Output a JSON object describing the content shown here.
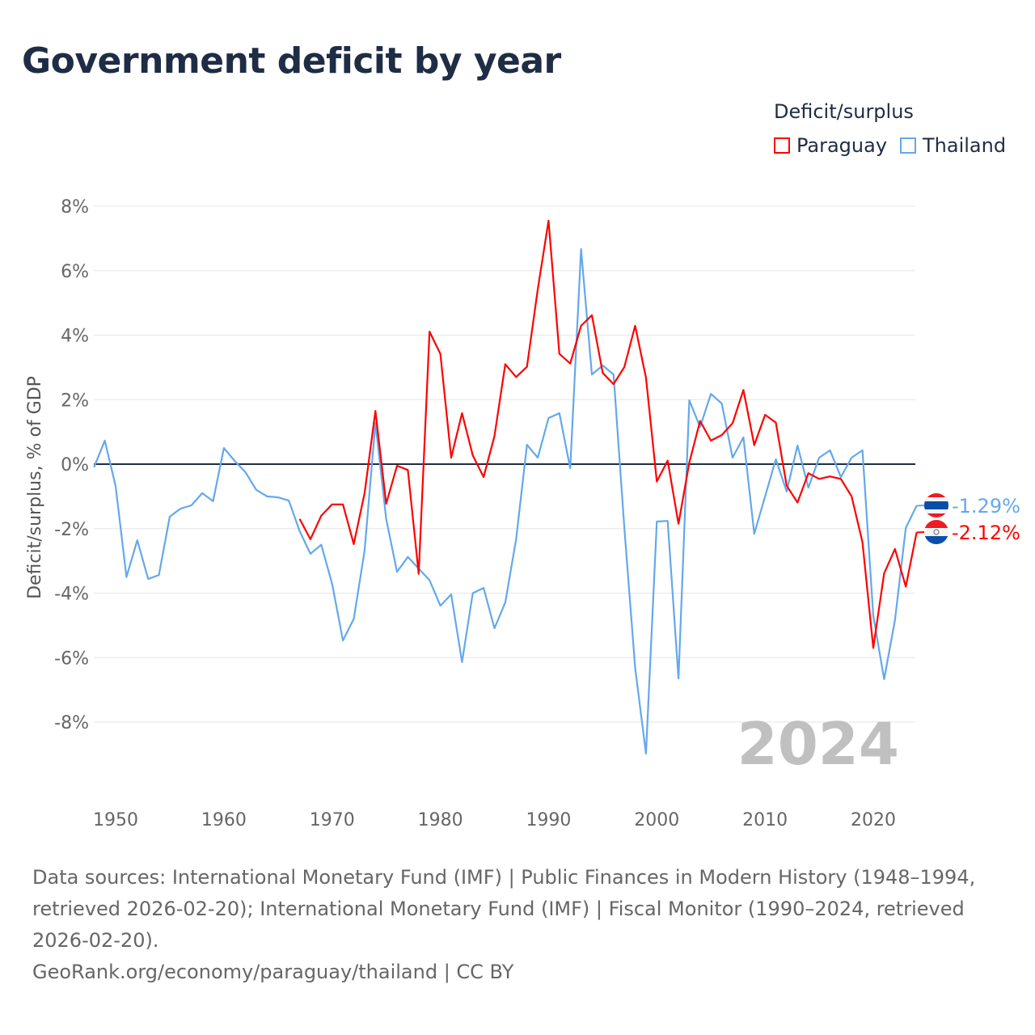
{
  "title": "Government deficit by year",
  "legend": {
    "title": "Deficit/surplus",
    "items": [
      "Paraguay",
      "Thailand"
    ]
  },
  "colors": {
    "Paraguay": "#ff0000",
    "Thailand": "#64a8eb",
    "zero": "#1e2d45",
    "grid": "#e6e6e6",
    "watermark": "#c0c0c0"
  },
  "footer": {
    "sources": "Data sources: International Monetary Fund (IMF) | Public Finances in Modern History (1948–1994, retrieved 2026-02-20); International Monetary Fund (IMF) | Fiscal Monitor (1990–2024, retrieved 2026-02-20).",
    "credit": "GeoRank.org/economy/paraguay/thailand | CC BY"
  },
  "chart_data": {
    "type": "line",
    "title": "Government deficit by year",
    "xlabel": "",
    "ylabel": "Deficit/surplus, % of GDP",
    "xlim": [
      1948,
      2024
    ],
    "ylim": [
      -10,
      8.5
    ],
    "yticks": [
      8,
      6,
      4,
      2,
      0,
      -2,
      -4,
      -6,
      -8
    ],
    "ytick_labels": [
      "8%",
      "6%",
      "4%",
      "2%",
      "0%",
      "-2%",
      "-4%",
      "-6%",
      "-8%"
    ],
    "xticks": [
      1950,
      1960,
      1970,
      1980,
      1990,
      2000,
      2010,
      2020
    ],
    "xtick_labels": [
      "1950",
      "1960",
      "1970",
      "1980",
      "1990",
      "2000",
      "2010",
      "2020"
    ],
    "grid": true,
    "legend_position": "top-right",
    "watermark": "2024",
    "series": [
      {
        "name": "Paraguay",
        "start_year": 1967,
        "values": [
          -1.7,
          -2.33,
          -1.6,
          -1.25,
          -1.25,
          -2.48,
          -0.9,
          1.65,
          -1.23,
          -0.05,
          -0.18,
          -3.4,
          4.11,
          3.42,
          0.2,
          1.58,
          0.27,
          -0.4,
          0.87,
          3.1,
          2.7,
          3.02,
          5.43,
          7.55,
          3.42,
          3.12,
          4.29,
          4.62,
          2.83,
          2.48,
          3.01,
          4.29,
          2.68,
          -0.54,
          0.11,
          -1.85,
          0.05,
          1.34,
          0.73,
          0.9,
          1.27,
          2.3,
          0.59,
          1.53,
          1.29,
          -0.67,
          -1.19,
          -0.28,
          -0.46,
          -0.38,
          -0.46,
          -1.0,
          -2.42,
          -5.7,
          -3.39,
          -2.63,
          -3.8,
          -2.12
        ],
        "end_label": "-2.12%"
      },
      {
        "name": "Thailand",
        "start_year": 1948,
        "values": [
          -0.1,
          0.73,
          -0.68,
          -3.5,
          -2.36,
          -3.56,
          -3.44,
          -1.63,
          -1.38,
          -1.28,
          -0.9,
          -1.15,
          0.5,
          0.1,
          -0.25,
          -0.8,
          -1.0,
          -1.03,
          -1.13,
          -2.08,
          -2.78,
          -2.5,
          -3.71,
          -5.47,
          -4.8,
          -2.68,
          1.28,
          -1.7,
          -3.34,
          -2.88,
          -3.24,
          -3.6,
          -4.39,
          -4.04,
          -6.14,
          -4.0,
          -3.84,
          -5.09,
          -4.29,
          -2.33,
          0.6,
          0.2,
          1.43,
          1.58,
          -0.13,
          6.67,
          2.78,
          3.06,
          2.78,
          -1.96,
          -6.32,
          -8.98,
          -1.78,
          -1.76,
          -6.65,
          1.98,
          1.15,
          2.18,
          1.88,
          0.2,
          0.83,
          -2.16,
          -1.0,
          0.15,
          -0.85,
          0.58,
          -0.73,
          0.2,
          0.43,
          -0.4,
          0.2,
          0.43,
          -4.7,
          -6.67,
          -4.84,
          -1.98,
          -1.29
        ],
        "end_label": "-1.29%"
      }
    ]
  }
}
